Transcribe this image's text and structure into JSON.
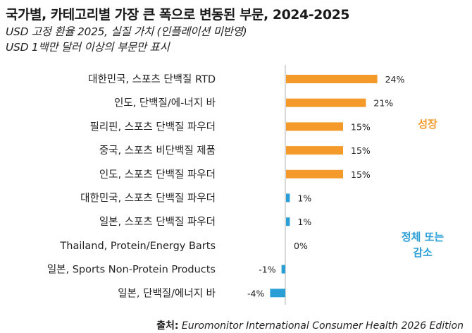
{
  "chart_data": {
    "type": "bar",
    "orientation": "horizontal",
    "title": "국가별, 카테고리별 가장 큰 폭으로 변동된 부문, 2024-2025",
    "subtitles": [
      "USD 고정 환율 2025, 실질 가치 (인플레이션 미반영)",
      "USD 1백만 달러 이상의 부문만 표시"
    ],
    "xlabel": "",
    "ylabel": "",
    "unit": "%",
    "xlim": [
      -5,
      26
    ],
    "grid": false,
    "categories": [
      "대한민국, 스포츠 단백질 RTD",
      "인도, 단백질/에-너지 바",
      "필리핀, 스포츠 단백질 파우더",
      "중국, 스포츠 비단백질 제품",
      "인도, 스포츠 단백질 파우더",
      "대한민국, 스포츠 단백질 파우더",
      "일본, 스포츠 단백질 파우더",
      "Thailand, Protein/Energy Barts",
      "일본, Sports Non-Protein Products",
      "일본, 단백질/에너지 바"
    ],
    "values": [
      24,
      21,
      15,
      15,
      15,
      1,
      1,
      0,
      -1,
      -4
    ],
    "value_labels": [
      "24%",
      "21%",
      "15%",
      "15%",
      "15%",
      "1%",
      "1%",
      "0%",
      "-1%",
      "-4%"
    ],
    "groups": [
      {
        "name": "성장",
        "color": "#F39A2B",
        "indices": [
          0,
          1,
          2,
          3,
          4
        ]
      },
      {
        "name": "정체 또는 감소",
        "color": "#2A9FD6",
        "indices": [
          5,
          6,
          7,
          8,
          9
        ]
      }
    ],
    "annotations": [
      {
        "text_lines": [
          "성장"
        ],
        "color": "#F39A2B"
      },
      {
        "text_lines": [
          "정체 또는",
          "감소"
        ],
        "color": "#2A9FD6"
      }
    ]
  },
  "source": {
    "label": "출처:",
    "text": "Euromonitor International Consumer Health 2026 Edition"
  },
  "colors": {
    "growth": "#F39A2B",
    "decline": "#2A9FD6",
    "axis": "#cccccc"
  }
}
